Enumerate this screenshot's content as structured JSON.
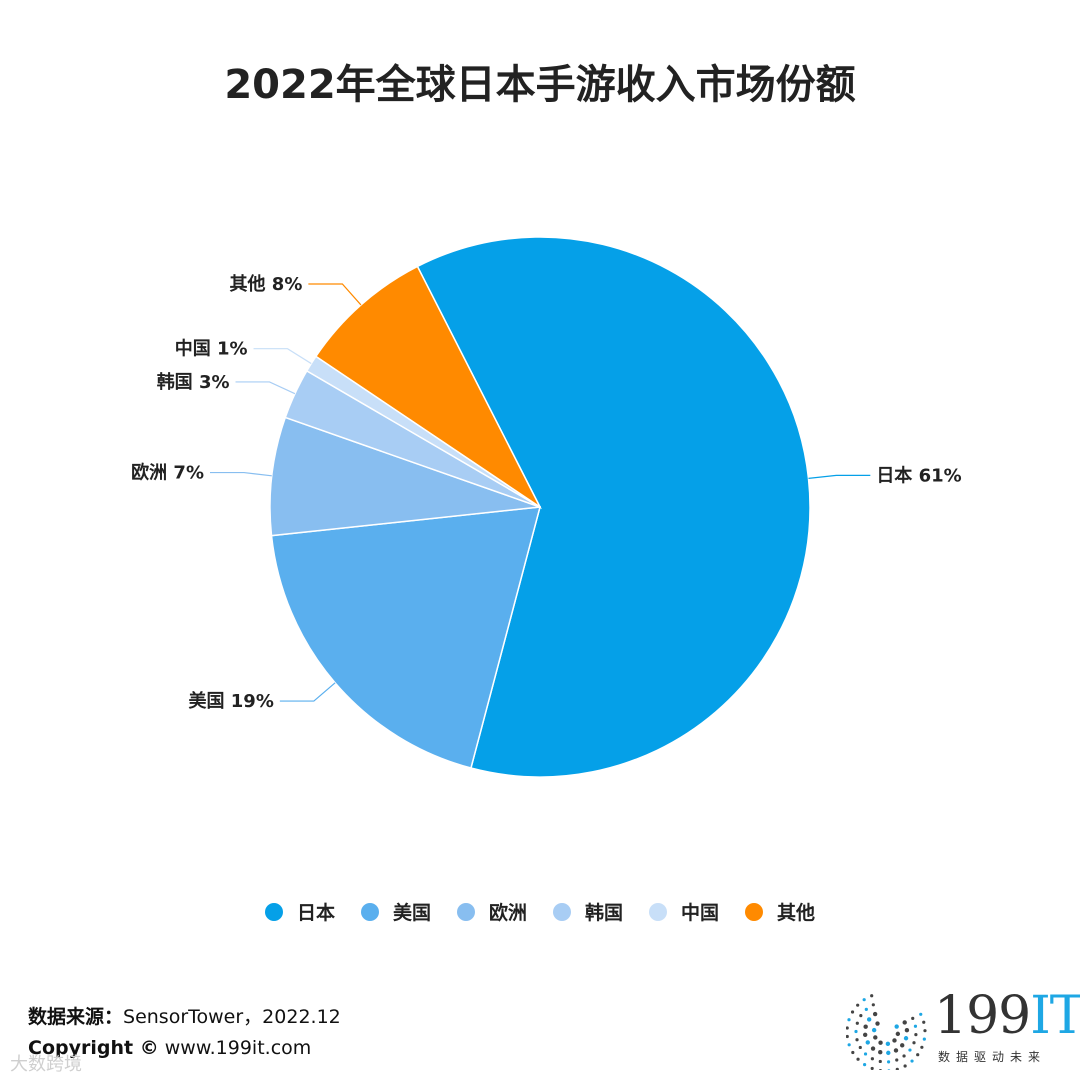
{
  "title": "2022年全球日本手游收入市场份额",
  "chart_data": {
    "type": "pie",
    "title": "2022年全球日本手游收入市场份额",
    "legend_position": "bottom",
    "slices": [
      {
        "name": "日本",
        "value": 61,
        "label": "日本 61%",
        "color": "#05a0e8"
      },
      {
        "name": "美国",
        "value": 19,
        "label": "美国 19%",
        "color": "#5aafee"
      },
      {
        "name": "欧洲",
        "value": 7,
        "label": "欧洲 7%",
        "color": "#88bef0"
      },
      {
        "name": "韩国",
        "value": 3,
        "label": "韩国 3%",
        "color": "#a8cdf4"
      },
      {
        "name": "中国",
        "value": 1,
        "label": "中国 1%",
        "color": "#c8dff8"
      },
      {
        "name": "其他",
        "value": 8,
        "label": "其他 8%",
        "color": "#ff8a00"
      }
    ]
  },
  "footer": {
    "source_label": "数据来源：",
    "source_value": "SensorTower，2022.12",
    "copyright_label": "Copyright ©",
    "copyright_value": " www.199it.com",
    "watermark": "大数跨境"
  },
  "logo": {
    "main": "199",
    "accent": "IT",
    "tagline": "数据驱动未来",
    "icon": "dotted-circle-logo-icon"
  }
}
